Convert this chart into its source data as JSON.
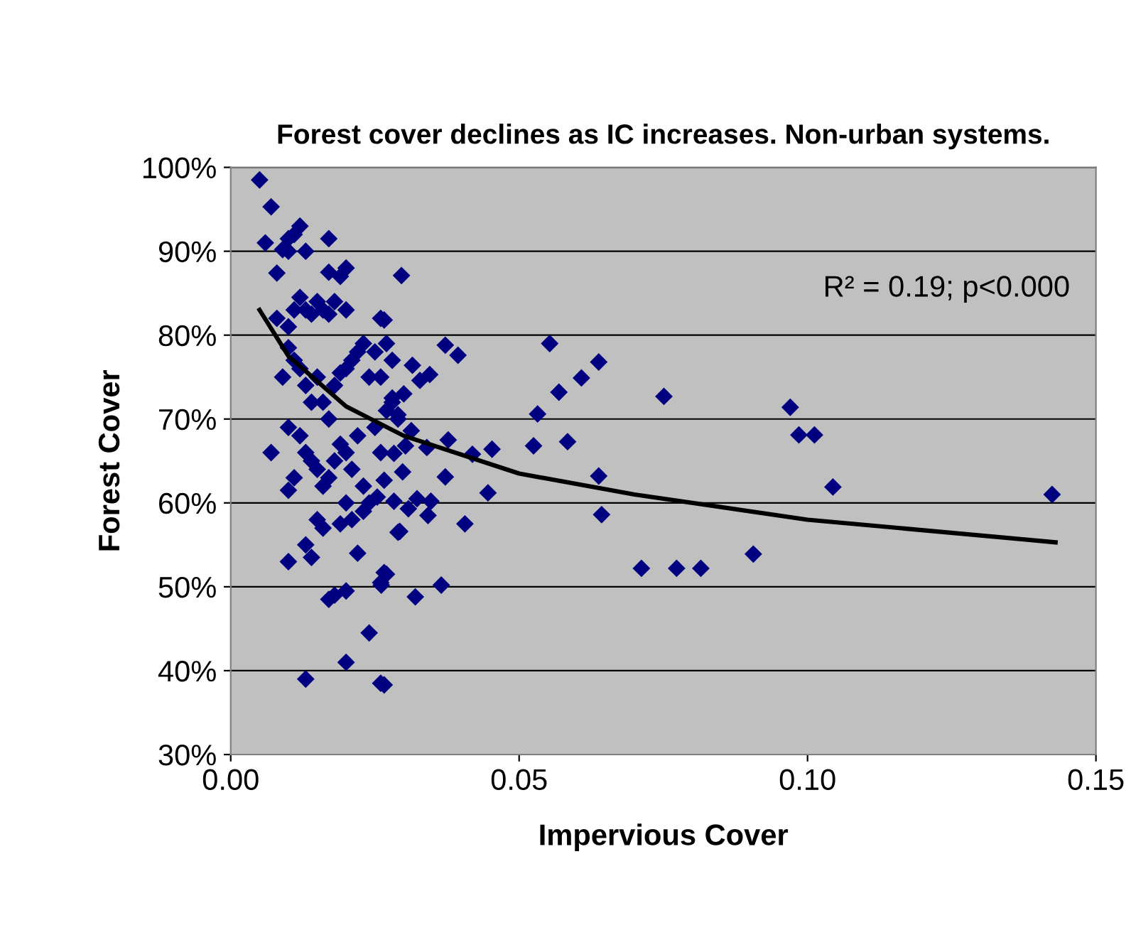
{
  "chart_data": {
    "type": "scatter",
    "title": "Forest cover declines as IC increases. Non-urban systems.",
    "xlabel": "Impervious Cover",
    "ylabel": "Forest Cover",
    "annotations": [
      "R² = 0.19; p<0.000"
    ],
    "xlim": [
      0,
      0.15
    ],
    "xticks": [
      {
        "value": 0,
        "label": "0.00"
      },
      {
        "value": 0.05,
        "label": "0.05"
      },
      {
        "value": 0.1,
        "label": "0.10"
      },
      {
        "value": 0.15,
        "label": "0.15"
      }
    ],
    "ylim": [
      30,
      100
    ],
    "yticks": [
      {
        "value": 30,
        "label": "30%"
      },
      {
        "value": 40,
        "label": "40%"
      },
      {
        "value": 50,
        "label": "50%"
      },
      {
        "value": 60,
        "label": "60%"
      },
      {
        "value": 70,
        "label": "70%"
      },
      {
        "value": 80,
        "label": "80%"
      },
      {
        "value": 90,
        "label": "90%"
      },
      {
        "value": 100,
        "label": "100%"
      }
    ],
    "grid": "y",
    "legend": false,
    "marker": "diamond",
    "series": [
      {
        "color": "#000080",
        "x": [
          0.005,
          0.006,
          0.007,
          0.008,
          0.009,
          0.01,
          0.01,
          0.011,
          0.012,
          0.013,
          0.017,
          0.008,
          0.01,
          0.011,
          0.012,
          0.013,
          0.014,
          0.015,
          0.016,
          0.017,
          0.018,
          0.019,
          0.02,
          0.02,
          0.017,
          0.007,
          0.009,
          0.01,
          0.011,
          0.012,
          0.013,
          0.014,
          0.015,
          0.016,
          0.017,
          0.018,
          0.019,
          0.02,
          0.021,
          0.022,
          0.023,
          0.024,
          0.025,
          0.026,
          0.026,
          0.027,
          0.028,
          0.01,
          0.01,
          0.011,
          0.012,
          0.013,
          0.014,
          0.015,
          0.016,
          0.017,
          0.018,
          0.019,
          0.02,
          0.021,
          0.022,
          0.023,
          0.024,
          0.025,
          0.026,
          0.027,
          0.028,
          0.029,
          0.03,
          0.01,
          0.013,
          0.014,
          0.015,
          0.016,
          0.017,
          0.018,
          0.02,
          0.013,
          0.02,
          0.022,
          0.024,
          0.026,
          0.026,
          0.027,
          0.029,
          0.019,
          0.021,
          0.02,
          0.023,
          0.0296,
          0.0266,
          0.0372,
          0.0394,
          0.0315,
          0.0345,
          0.0328,
          0.028,
          0.029,
          0.0313,
          0.0377,
          0.0303,
          0.034,
          0.0419,
          0.0453,
          0.0525,
          0.0283,
          0.0298,
          0.0372,
          0.0266,
          0.0446,
          0.0254,
          0.0283,
          0.0323,
          0.0347,
          0.0308,
          0.0342,
          0.0293,
          0.0406,
          0.0266,
          0.0261,
          0.032,
          0.0365,
          0.0266,
          0.0553,
          0.0532,
          0.0638,
          0.0608,
          0.0569,
          0.0751,
          0.097,
          0.0985,
          0.1012,
          0.0584,
          0.0638,
          0.1044,
          0.1424,
          0.0643,
          0.0906,
          0.0712,
          0.0773,
          0.0815
        ],
        "values": [
          98.5,
          91,
          95.3,
          87.4,
          90.2,
          91.5,
          90,
          92,
          93,
          90,
          91.5,
          82,
          81,
          83,
          84.5,
          83,
          82.5,
          84,
          83,
          87.5,
          84,
          87,
          88,
          83,
          82.5,
          66,
          75,
          78.5,
          77,
          76,
          74,
          72,
          75,
          72,
          70,
          74,
          75.5,
          76,
          77,
          78,
          79,
          75,
          78,
          82,
          75,
          79,
          77,
          69,
          61.5,
          63,
          68,
          66,
          65,
          64,
          62,
          63,
          65,
          67,
          66,
          64,
          68,
          62,
          60,
          69,
          66,
          71,
          72,
          70,
          73,
          53,
          55,
          53.5,
          58,
          57,
          48.5,
          49,
          41,
          39,
          49.5,
          54,
          44.5,
          38.5,
          50.5,
          51.5,
          56.5,
          57.5,
          58,
          60,
          59,
          87.1,
          81.8,
          78.8,
          77.6,
          76.4,
          75.3,
          74.6,
          72.5,
          70.5,
          68.6,
          67.5,
          66.8,
          66.6,
          65.8,
          66.4,
          66.8,
          65.9,
          63.7,
          63.1,
          62.7,
          61.2,
          60.7,
          60.2,
          60.5,
          60.2,
          59.3,
          58.5,
          56.6,
          57.5,
          51.7,
          50.2,
          48.8,
          50.2,
          38.3,
          79,
          70.6,
          76.8,
          74.9,
          73.2,
          72.7,
          71.4,
          68.1,
          68.1,
          67.3,
          63.2,
          61.9,
          61.0,
          58.6,
          53.9,
          52.2,
          52.2,
          52.2
        ]
      },
      {
        "type": "line",
        "color": "#000000",
        "marker": "none",
        "line_style": "solid",
        "x": [
          0.005,
          0.01,
          0.02,
          0.03,
          0.05,
          0.07,
          0.1,
          0.143
        ],
        "values": [
          83,
          77.5,
          71.5,
          68,
          63.5,
          61,
          58,
          55.3
        ]
      }
    ]
  }
}
